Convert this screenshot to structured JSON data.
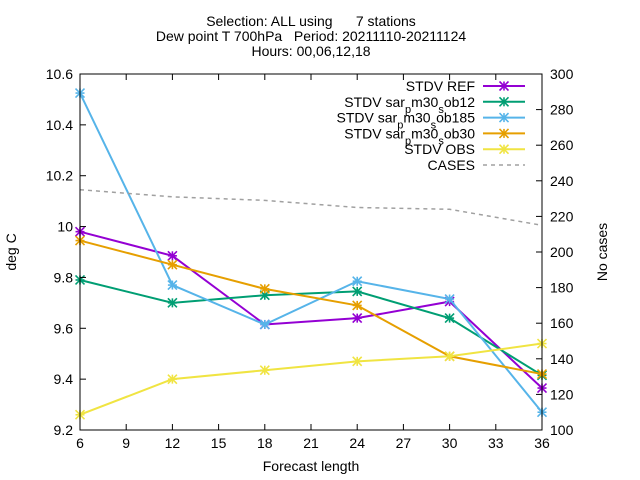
{
  "chart_data": {
    "type": "line",
    "title_lines": [
      "Selection: ALL using      7 stations",
      "Dew point T 700hPa   Period: 20211110-20211124",
      "Hours: 00,06,12,18"
    ],
    "xlabel": "Forecast length",
    "ylabel": "deg C",
    "y2label": "No cases",
    "xlim": [
      6,
      36
    ],
    "ylim": [
      9.2,
      10.6
    ],
    "y2lim": [
      100,
      300
    ],
    "xticks": [
      6,
      9,
      12,
      15,
      18,
      21,
      24,
      27,
      30,
      33,
      36
    ],
    "yticks": [
      9.2,
      9.4,
      9.6,
      9.8,
      10.0,
      10.2,
      10.4,
      10.6
    ],
    "ytick_labels": [
      "9.2",
      "9.4",
      "9.6",
      "9.8",
      "10",
      "10.2",
      "10.4",
      "10.6"
    ],
    "y2ticks": [
      100,
      120,
      140,
      160,
      180,
      200,
      220,
      240,
      260,
      280,
      300
    ],
    "legend_position": "top-right",
    "x": [
      6,
      12,
      18,
      24,
      30,
      36
    ],
    "series": [
      {
        "name": "STDV REF",
        "color": "#9400d3",
        "axis": "y",
        "style": "line-marker",
        "values": [
          9.98,
          9.885,
          9.615,
          9.64,
          9.705,
          9.365
        ]
      },
      {
        "name": "STDV sar_pm30_sob12",
        "name_parts": [
          "STDV sar",
          "p",
          "m30",
          "s",
          "ob12"
        ],
        "color": "#009e73",
        "axis": "y",
        "style": "line-marker",
        "values": [
          9.79,
          9.7,
          9.73,
          9.745,
          9.64,
          9.415
        ]
      },
      {
        "name": "STDV sar_pm30_sob185",
        "name_parts": [
          "STDV sar",
          "p",
          "m30",
          "s",
          "ob185"
        ],
        "color": "#56b4e9",
        "axis": "y",
        "style": "line-marker",
        "values": [
          10.525,
          9.77,
          9.615,
          9.785,
          9.715,
          9.27
        ]
      },
      {
        "name": "STDV sar_pm30_sob30",
        "name_parts": [
          "STDV sar",
          "p",
          "m30",
          "s",
          "ob30"
        ],
        "color": "#e69f00",
        "axis": "y",
        "style": "line-marker",
        "values": [
          9.945,
          9.85,
          9.755,
          9.69,
          9.49,
          9.42
        ]
      },
      {
        "name": "STDV OBS",
        "color": "#f0e442",
        "axis": "y",
        "style": "line-marker",
        "values": [
          9.26,
          9.4,
          9.435,
          9.47,
          9.49,
          9.54
        ]
      },
      {
        "name": "CASES",
        "color": "#a0a0a0",
        "axis": "y2",
        "style": "dashed",
        "values": [
          235,
          231,
          229,
          225,
          224,
          215
        ]
      }
    ]
  }
}
